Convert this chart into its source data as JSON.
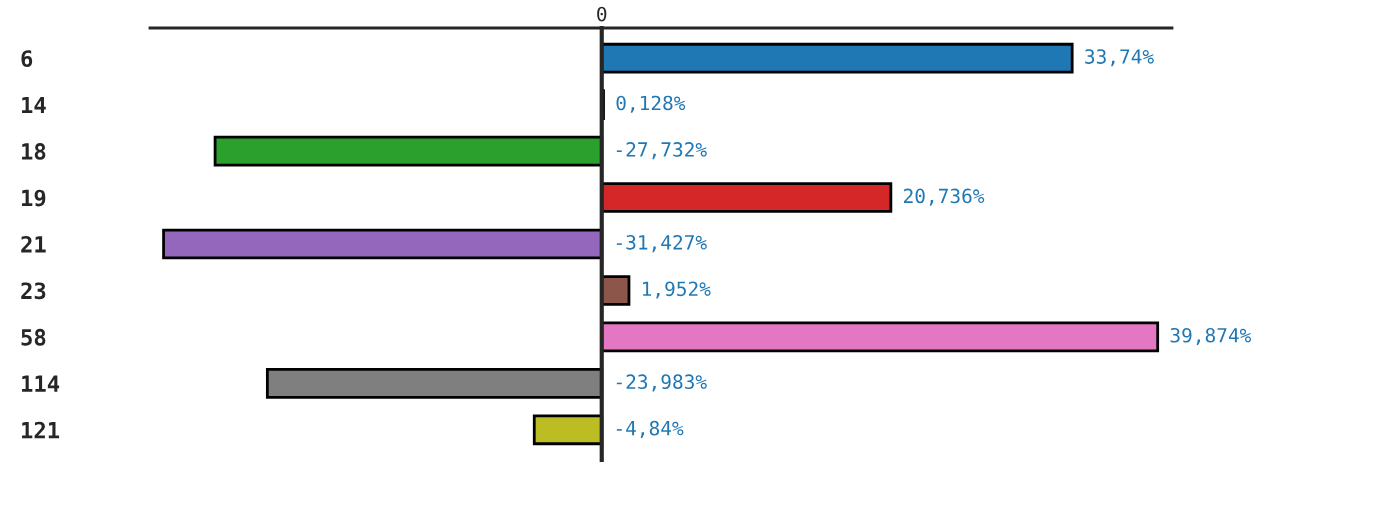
{
  "chart_data": {
    "type": "bar",
    "orientation": "horizontal",
    "categories": [
      "6",
      "14",
      "18",
      "19",
      "21",
      "23",
      "58",
      "114",
      "121"
    ],
    "values": [
      33.74,
      0.128,
      -27.732,
      20.736,
      -31.427,
      1.952,
      39.874,
      -23.983,
      -4.84
    ],
    "colors": [
      "#1f77b4",
      "#ff7f0e",
      "#2ca02c",
      "#d62728",
      "#9467bd",
      "#8c564b",
      "#e377c2",
      "#7f7f7f",
      "#bcbd22"
    ],
    "value_labels": [
      "33,74%",
      "0,128%",
      "-27,732%",
      "20,736%",
      "-31,427%",
      "1,952%",
      "39,874%",
      "-23,983%",
      "-4,84%"
    ],
    "xlim": [
      -32.4,
      40.9
    ],
    "annotations": [
      {
        "text": "0",
        "x": 0
      }
    ],
    "grid": false,
    "legend": false
  }
}
